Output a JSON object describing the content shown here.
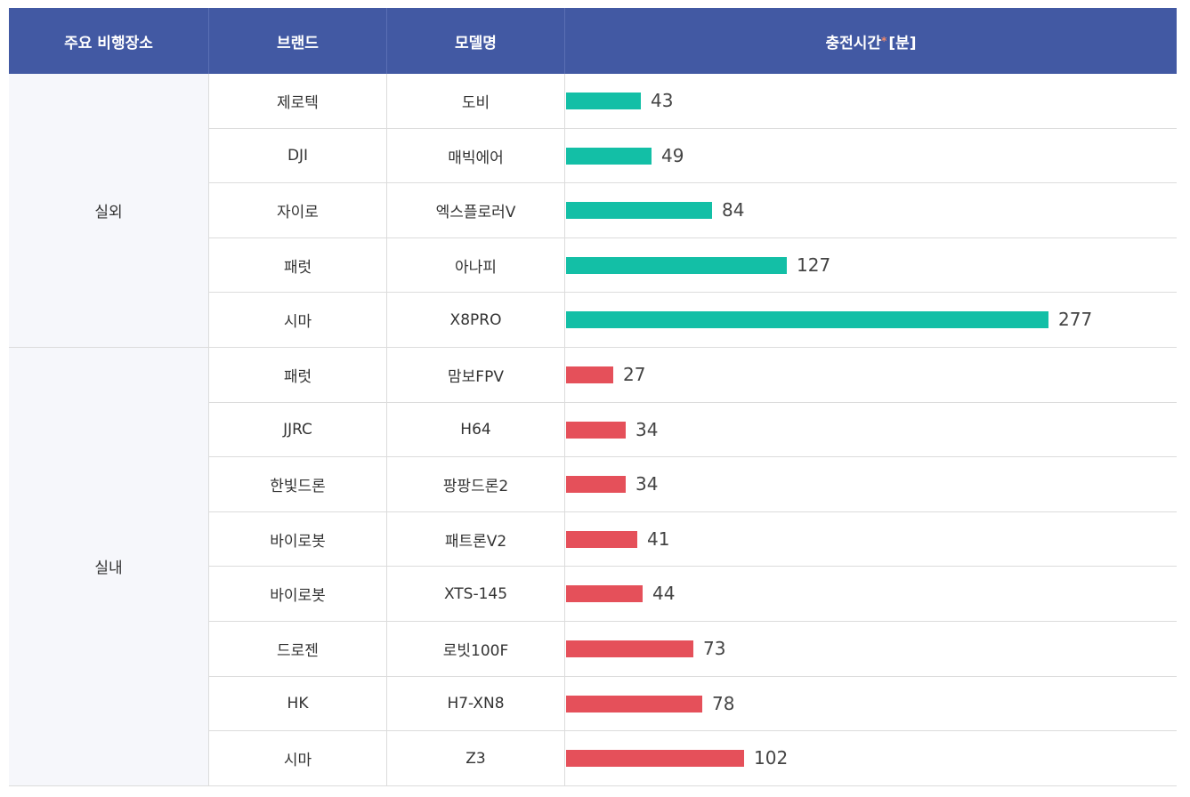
{
  "header": {
    "place": "주요 비행장소",
    "brand": "브랜드",
    "model": "모델명",
    "charge": "충전시간",
    "charge_star": "*",
    "charge_unit": "[분]"
  },
  "colors": {
    "header_bg": "#4259a3",
    "outdoor": "#13bfa6",
    "indoor": "#e5505a"
  },
  "chart_data": {
    "type": "bar",
    "orientation": "horizontal",
    "value_label": "충전시간 [분]",
    "xlim": [
      0,
      277
    ],
    "groups": [
      {
        "place": "실외",
        "color": "#13bfa6",
        "rows": [
          {
            "brand": "제로텍",
            "model": "도비",
            "value": 43
          },
          {
            "brand": "DJI",
            "model": "매빅에어",
            "value": 49
          },
          {
            "brand": "자이로",
            "model": "엑스플로러V",
            "value": 84
          },
          {
            "brand": "패럿",
            "model": "아나피",
            "value": 127
          },
          {
            "brand": "시마",
            "model": "X8PRO",
            "value": 277
          }
        ]
      },
      {
        "place": "실내",
        "color": "#e5505a",
        "rows": [
          {
            "brand": "패럿",
            "model": "맘보FPV",
            "value": 27
          },
          {
            "brand": "JJRC",
            "model": "H64",
            "value": 34
          },
          {
            "brand": "한빛드론",
            "model": "팡팡드론2",
            "value": 34
          },
          {
            "brand": "바이로봇",
            "model": "패트론V2",
            "value": 41
          },
          {
            "brand": "바이로봇",
            "model": "XTS-145",
            "value": 44
          },
          {
            "brand": "드로젠",
            "model": "로빗100F",
            "value": 73
          },
          {
            "brand": "HK",
            "model": "H7-XN8",
            "value": 78
          },
          {
            "brand": "시마",
            "model": "Z3",
            "value": 102
          }
        ]
      }
    ]
  }
}
